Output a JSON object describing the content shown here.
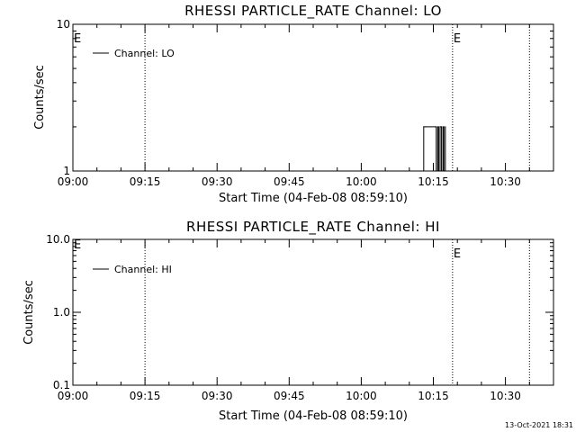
{
  "chart_data": [
    {
      "type": "line",
      "title": "RHESSI PARTICLE_RATE Channel: LO",
      "xlabel": "Start Time (04-Feb-08 08:59:10)",
      "ylabel": "Counts/sec",
      "yscale": "log",
      "ylim": [
        1,
        10
      ],
      "yticks": [
        1,
        10
      ],
      "ytick_labels": [
        "1",
        "10"
      ],
      "xlim_minutes": [
        0,
        100
      ],
      "xticks": [
        "09:00",
        "09:15",
        "09:30",
        "09:45",
        "10:00",
        "10:15",
        "10:30"
      ],
      "xtick_minutes": [
        0,
        15,
        30,
        45,
        60,
        75,
        90
      ],
      "legend": {
        "entries": [
          "Channel: LO"
        ],
        "position": "top-left"
      },
      "markers": {
        "start_label": "E",
        "vlines": [
          "09:15",
          "10:19",
          "10:35"
        ],
        "vline_labels": [
          "",
          "E",
          ""
        ]
      },
      "series": [
        {
          "name": "Channel: LO",
          "x_minutes": [
            72.5,
            73.0,
            73.4,
            75.4,
            75.6,
            75.9,
            76.1,
            76.4,
            76.7,
            77.0,
            77.2,
            77.5
          ],
          "values": [
            1.0,
            2.0,
            2.0,
            2.0,
            1.0,
            2.0,
            1.0,
            2.0,
            1.0,
            2.0,
            1.0,
            2.0
          ]
        }
      ]
    },
    {
      "type": "line",
      "title": "RHESSI PARTICLE_RATE Channel: HI",
      "xlabel": "Start Time (04-Feb-08 08:59:10)",
      "ylabel": "Counts/sec",
      "yscale": "log",
      "ylim": [
        0.1,
        10
      ],
      "yticks": [
        0.1,
        1,
        10
      ],
      "ytick_labels": [
        "0.1",
        "1.0",
        "10.0"
      ],
      "xlim_minutes": [
        0,
        100
      ],
      "xticks": [
        "09:00",
        "09:15",
        "09:30",
        "09:45",
        "10:00",
        "10:15",
        "10:30"
      ],
      "xtick_minutes": [
        0,
        15,
        30,
        45,
        60,
        75,
        90
      ],
      "legend": {
        "entries": [
          "Channel: HI"
        ],
        "position": "top-left"
      },
      "markers": {
        "start_label": "E",
        "vlines": [
          "09:15",
          "10:19",
          "10:35"
        ],
        "vline_labels": [
          "",
          "E",
          ""
        ]
      },
      "series": [
        {
          "name": "Channel: HI",
          "x_minutes": [],
          "values": []
        }
      ]
    }
  ],
  "footer": {
    "timestamp": "13-Oct-2021 18:31"
  }
}
